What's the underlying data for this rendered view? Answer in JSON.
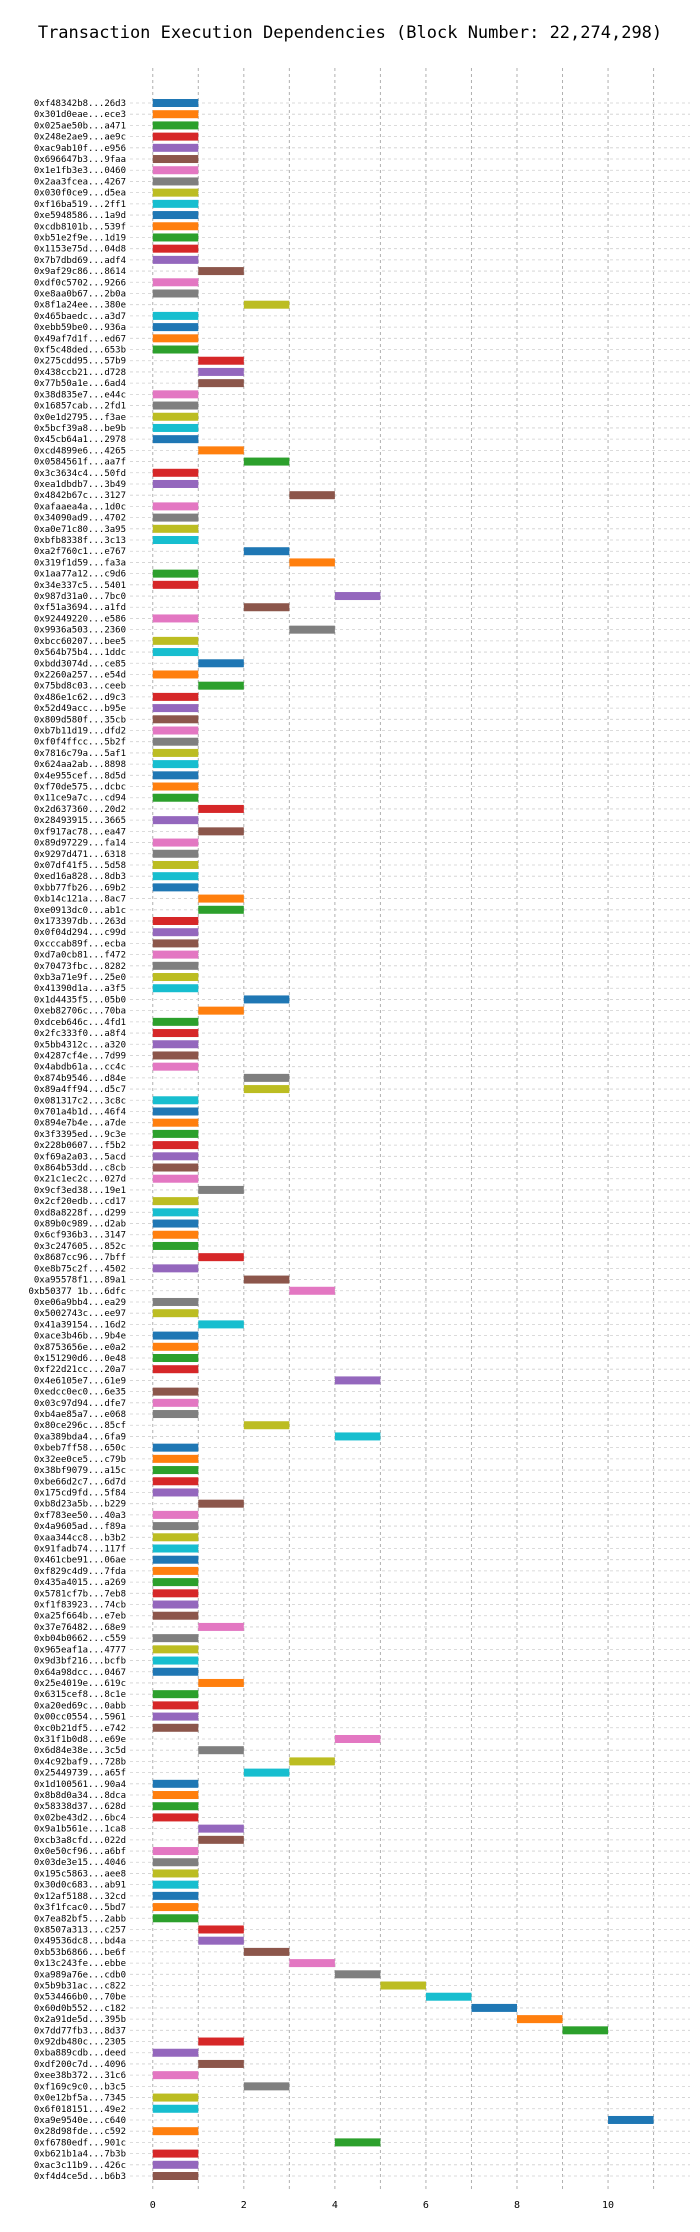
{
  "chart_data": {
    "type": "bar",
    "orientation": "horizontal-gantt",
    "title": "Transaction Execution Dependencies (Block Number: 22,274,298)",
    "xlabel": "",
    "ylabel": "",
    "xlim": [
      -0.5,
      11.8
    ],
    "xticks": [
      0,
      2,
      4,
      6,
      8,
      10
    ],
    "grid": true,
    "palette": [
      "#1f77b4",
      "#ff7f0e",
      "#2ca02c",
      "#d62728",
      "#9467bd",
      "#8c564b",
      "#e377c2",
      "#7f7f7f",
      "#bcbd22",
      "#17becf"
    ],
    "rows": [
      {
        "label": "0xf48342b8...26d3",
        "start": 0
      },
      {
        "label": "0x301d0eae...ece3",
        "start": 0
      },
      {
        "label": "0x025ae50b...a471",
        "start": 0
      },
      {
        "label": "0x248e2ae9...ae9c",
        "start": 0
      },
      {
        "label": "0xac9ab10f...e956",
        "start": 0
      },
      {
        "label": "0x696647b3...9faa",
        "start": 0
      },
      {
        "label": "0x1e1fb3e3...0460",
        "start": 0
      },
      {
        "label": "0x2aa3fcea...4267",
        "start": 0
      },
      {
        "label": "0x030f0ce9...d5ea",
        "start": 0
      },
      {
        "label": "0xf16ba519...2ff1",
        "start": 0
      },
      {
        "label": "0xe5948586...1a9d",
        "start": 0
      },
      {
        "label": "0xcdb8101b...539f",
        "start": 0
      },
      {
        "label": "0xb51e2f9e...1d19",
        "start": 0
      },
      {
        "label": "0x1153e75d...04d8",
        "start": 0
      },
      {
        "label": "0x7b7dbd69...adf4",
        "start": 0
      },
      {
        "label": "0x9af29c86...8614",
        "start": 1
      },
      {
        "label": "0xdf0c5702...9266",
        "start": 0
      },
      {
        "label": "0xe8aa0b67...2b0a",
        "start": 0
      },
      {
        "label": "0x8f1a24ee...380e",
        "start": 2
      },
      {
        "label": "0x465baedc...a3d7",
        "start": 0
      },
      {
        "label": "0xebb59be0...936a",
        "start": 0
      },
      {
        "label": "0x49af7d1f...ed67",
        "start": 0
      },
      {
        "label": "0xf5c48ded...653b",
        "start": 0
      },
      {
        "label": "0x275cdd95...57b9",
        "start": 1
      },
      {
        "label": "0x438ccb21...d728",
        "start": 1
      },
      {
        "label": "0x77b50a1e...6ad4",
        "start": 1
      },
      {
        "label": "0x38d835e7...e44c",
        "start": 0
      },
      {
        "label": "0x16857cab...2fd1",
        "start": 0
      },
      {
        "label": "0x0e1d2795...f3ae",
        "start": 0
      },
      {
        "label": "0x5bcf39a8...be9b",
        "start": 0
      },
      {
        "label": "0x45cb64a1...2978",
        "start": 0
      },
      {
        "label": "0xcd4899e6...4265",
        "start": 1
      },
      {
        "label": "0x0584561f...aa7f",
        "start": 2
      },
      {
        "label": "0x3c3634c4...50fd",
        "start": 0
      },
      {
        "label": "0xea1dbdb7...3b49",
        "start": 0
      },
      {
        "label": "0x4842b67c...3127",
        "start": 3
      },
      {
        "label": "0xafaaea4a...1d0c",
        "start": 0
      },
      {
        "label": "0x34090ad9...4702",
        "start": 0
      },
      {
        "label": "0xa0e71c80...3a95",
        "start": 0
      },
      {
        "label": "0xbfb8338f...3c13",
        "start": 0
      },
      {
        "label": "0xa2f760c1...e767",
        "start": 2
      },
      {
        "label": "0x319f1d59...fa3a",
        "start": 3
      },
      {
        "label": "0x1aa77a12...c9d6",
        "start": 0
      },
      {
        "label": "0x34e337c5...5401",
        "start": 0
      },
      {
        "label": "0x987d31a0...7bc0",
        "start": 4
      },
      {
        "label": "0xf51a3694...a1fd",
        "start": 2
      },
      {
        "label": "0x92449220...e586",
        "start": 0
      },
      {
        "label": "0x9936a503...2360",
        "start": 3
      },
      {
        "label": "0xbcc60207...bee5",
        "start": 0
      },
      {
        "label": "0x564b75b4...1ddc",
        "start": 0
      },
      {
        "label": "0xbdd3074d...ce85",
        "start": 1
      },
      {
        "label": "0x2260a257...e54d",
        "start": 0
      },
      {
        "label": "0x75bd8c03...ceeb",
        "start": 1
      },
      {
        "label": "0x486e1c62...d9c3",
        "start": 0
      },
      {
        "label": "0x52d49acc...b95e",
        "start": 0
      },
      {
        "label": "0x809d580f...35cb",
        "start": 0
      },
      {
        "label": "0xb7b11d19...dfd2",
        "start": 0
      },
      {
        "label": "0xf0f4ffcc...5b2f",
        "start": 0
      },
      {
        "label": "0x7816c79a...5af1",
        "start": 0
      },
      {
        "label": "0x624aa2ab...8898",
        "start": 0
      },
      {
        "label": "0x4e955cef...8d5d",
        "start": 0
      },
      {
        "label": "0xf70de575...dcbc",
        "start": 0
      },
      {
        "label": "0x11ce9a7c...cd94",
        "start": 0
      },
      {
        "label": "0x2d637360...20d2",
        "start": 1
      },
      {
        "label": "0x28493915...3665",
        "start": 0
      },
      {
        "label": "0xf917ac78...ea47",
        "start": 1
      },
      {
        "label": "0x89d97229...fa14",
        "start": 0
      },
      {
        "label": "0x9297d471...6318",
        "start": 0
      },
      {
        "label": "0x07df41f5...5d58",
        "start": 0
      },
      {
        "label": "0xed16a828...8db3",
        "start": 0
      },
      {
        "label": "0xbb77fb26...69b2",
        "start": 0
      },
      {
        "label": "0xb14c121a...8ac7",
        "start": 1
      },
      {
        "label": "0xe0913dc0...ab1c",
        "start": 1
      },
      {
        "label": "0x173397db...263d",
        "start": 0
      },
      {
        "label": "0x0f04d294...c99d",
        "start": 0
      },
      {
        "label": "0xcccab89f...ecba",
        "start": 0
      },
      {
        "label": "0xd7a0cb81...f472",
        "start": 0
      },
      {
        "label": "0x70473fbc...8282",
        "start": 0
      },
      {
        "label": "0xb3a71e9f...25e0",
        "start": 0
      },
      {
        "label": "0x41390d1a...a3f5",
        "start": 0
      },
      {
        "label": "0x1d4435f5...05b0",
        "start": 2
      },
      {
        "label": "0xeb82706c...70ba",
        "start": 1
      },
      {
        "label": "0xdceb646c...4fd1",
        "start": 0
      },
      {
        "label": "0x2fc333f0...a8f4",
        "start": 0
      },
      {
        "label": "0x5bb4312c...a320",
        "start": 0
      },
      {
        "label": "0x4287cf4e...7d99",
        "start": 0
      },
      {
        "label": "0x4abdb61a...cc4c",
        "start": 0
      },
      {
        "label": "0x874b9546...d84e",
        "start": 2
      },
      {
        "label": "0x89a4ff94...d5c7",
        "start": 2
      },
      {
        "label": "0x081317c2...3c8c",
        "start": 0
      },
      {
        "label": "0x701a4b1d...46f4",
        "start": 0
      },
      {
        "label": "0x894e7b4e...a7de",
        "start": 0
      },
      {
        "label": "0x3f3395ed...9c3e",
        "start": 0
      },
      {
        "label": "0x228b0607...f5b2",
        "start": 0
      },
      {
        "label": "0xf69a2a03...5acd",
        "start": 0
      },
      {
        "label": "0x864b53dd...c8cb",
        "start": 0
      },
      {
        "label": "0x21c1ec2c...027d",
        "start": 0
      },
      {
        "label": "0x9cf3ed38...19e1",
        "start": 1
      },
      {
        "label": "0x2cf20edb...cd17",
        "start": 0
      },
      {
        "label": "0xd8a8228f...d299",
        "start": 0
      },
      {
        "label": "0x89b0c989...d2ab",
        "start": 0
      },
      {
        "label": "0x6cf936b3...3147",
        "start": 0
      },
      {
        "label": "0x3c247605...852c",
        "start": 0
      },
      {
        "label": "0x8687cc96...7bff",
        "start": 1
      },
      {
        "label": "0xe8b75c2f...4502",
        "start": 0
      },
      {
        "label": "0xa95578f1...89a1",
        "start": 2
      },
      {
        "label": "0xb50377 1b...6dfc",
        "start": 3
      },
      {
        "label": "0xe06a9bb4...ea29",
        "start": 0
      },
      {
        "label": "0x5002743c...ee97",
        "start": 0
      },
      {
        "label": "0x41a39154...16d2",
        "start": 1
      },
      {
        "label": "0xace3b46b...9b4e",
        "start": 0
      },
      {
        "label": "0x8753656e...e0a2",
        "start": 0
      },
      {
        "label": "0x151290d6...0e48",
        "start": 0
      },
      {
        "label": "0xf22d21cc...20a7",
        "start": 0
      },
      {
        "label": "0x4e6105e7...61e9",
        "start": 4
      },
      {
        "label": "0xedcc0ec0...6e35",
        "start": 0
      },
      {
        "label": "0x03c97d94...dfe7",
        "start": 0
      },
      {
        "label": "0xb4ae85a7...e068",
        "start": 0
      },
      {
        "label": "0x80ce296c...85cf",
        "start": 2
      },
      {
        "label": "0xa389bda4...6fa9",
        "start": 4
      },
      {
        "label": "0xbeb7ff58...650c",
        "start": 0
      },
      {
        "label": "0x32ee0ce5...c79b",
        "start": 0
      },
      {
        "label": "0x38bf9079...a15c",
        "start": 0
      },
      {
        "label": "0xbe66d2c7...6d7d",
        "start": 0
      },
      {
        "label": "0x175cd9fd...5f84",
        "start": 0
      },
      {
        "label": "0xb8d23a5b...b229",
        "start": 1
      },
      {
        "label": "0xf783ee50...40a3",
        "start": 0
      },
      {
        "label": "0x4a9605ad...f89a",
        "start": 0
      },
      {
        "label": "0xaa344cc8...b3b2",
        "start": 0
      },
      {
        "label": "0x91fadb74...117f",
        "start": 0
      },
      {
        "label": "0x461cbe91...06ae",
        "start": 0
      },
      {
        "label": "0xf829c4d9...7fda",
        "start": 0
      },
      {
        "label": "0x435a4015...a269",
        "start": 0
      },
      {
        "label": "0x5781cf7b...7eb8",
        "start": 0
      },
      {
        "label": "0xf1f83923...74cb",
        "start": 0
      },
      {
        "label": "0xa25f664b...e7eb",
        "start": 0
      },
      {
        "label": "0x37e76482...68e9",
        "start": 1
      },
      {
        "label": "0xb04b0662...c559",
        "start": 0
      },
      {
        "label": "0x965eaf1a...4777",
        "start": 0
      },
      {
        "label": "0x9d3bf216...bcfb",
        "start": 0
      },
      {
        "label": "0x64a98dcc...0467",
        "start": 0
      },
      {
        "label": "0x25e4019e...619c",
        "start": 1
      },
      {
        "label": "0x6315cef8...8c1e",
        "start": 0
      },
      {
        "label": "0xa20ed69c...0abb",
        "start": 0
      },
      {
        "label": "0x00cc0554...5961",
        "start": 0
      },
      {
        "label": "0xc0b21df5...e742",
        "start": 0
      },
      {
        "label": "0x31f1b0d8...e69e",
        "start": 4
      },
      {
        "label": "0x6d84e38e...3c5d",
        "start": 1
      },
      {
        "label": "0x4c92baf9...728b",
        "start": 3
      },
      {
        "label": "0x25449739...a65f",
        "start": 2
      },
      {
        "label": "0x1d100561...90a4",
        "start": 0
      },
      {
        "label": "0x8b8d0a34...8dca",
        "start": 0
      },
      {
        "label": "0x58338d37...628d",
        "start": 0
      },
      {
        "label": "0x02be43d2...6bc4",
        "start": 0
      },
      {
        "label": "0x9a1b561e...1ca8",
        "start": 1
      },
      {
        "label": "0xcb3a8cfd...022d",
        "start": 1
      },
      {
        "label": "0x0e50cf96...a6bf",
        "start": 0
      },
      {
        "label": "0x03de3e15...4046",
        "start": 0
      },
      {
        "label": "0x195c5863...aee8",
        "start": 0
      },
      {
        "label": "0x30d0c683...ab91",
        "start": 0
      },
      {
        "label": "0x12af5188...32cd",
        "start": 0
      },
      {
        "label": "0x3f1fcac0...5bd7",
        "start": 0
      },
      {
        "label": "0x7ea82bf5...2abb",
        "start": 0
      },
      {
        "label": "0x8507a313...c257",
        "start": 1
      },
      {
        "label": "0x49536dc8...bd4a",
        "start": 1
      },
      {
        "label": "0xb53b6866...be6f",
        "start": 2
      },
      {
        "label": "0x13c243fe...ebbe",
        "start": 3
      },
      {
        "label": "0xa989a76e...cdb0",
        "start": 4
      },
      {
        "label": "0x5b9b31ac...c822",
        "start": 5
      },
      {
        "label": "0x534466b0...70be",
        "start": 6
      },
      {
        "label": "0x60d0b552...c182",
        "start": 7
      },
      {
        "label": "0x2a91de5d...395b",
        "start": 8
      },
      {
        "label": "0x7dd77fb3...8d37",
        "start": 9
      },
      {
        "label": "0x92db480c...2305",
        "start": 1
      },
      {
        "label": "0xba889cdb...deed",
        "start": 0
      },
      {
        "label": "0xdf200c7d...4096",
        "start": 1
      },
      {
        "label": "0xee38b372...31c6",
        "start": 0
      },
      {
        "label": "0xf169c9c0...b3c5",
        "start": 2
      },
      {
        "label": "0x0e12bf5a...7345",
        "start": 0
      },
      {
        "label": "0x6f018151...49e2",
        "start": 0
      },
      {
        "label": "0xa9e9540e...c640",
        "start": 10
      },
      {
        "label": "0x28d98fde...c592",
        "start": 0
      },
      {
        "label": "0xf6780edf...901c",
        "start": 4
      },
      {
        "label": "0xb621b1a4...7b3b",
        "start": 0
      },
      {
        "label": "0xac3c11b9...426c",
        "start": 0
      },
      {
        "label": "0xf4d4ce5d...b6b3",
        "start": 0
      }
    ]
  }
}
